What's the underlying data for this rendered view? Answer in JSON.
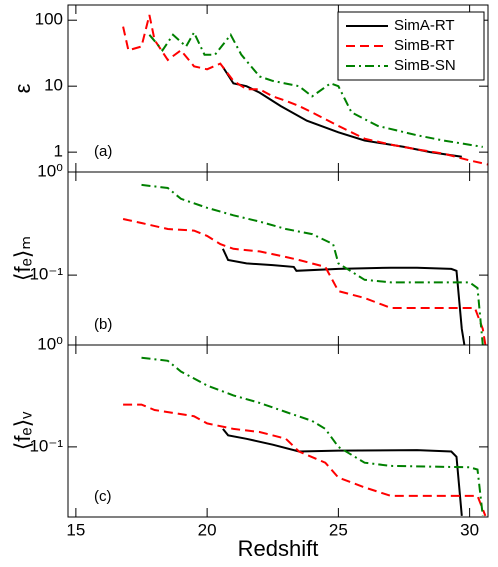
{
  "chart_data": [
    {
      "type": "line",
      "ylabel": "ε",
      "panel_label": "(a)",
      "log_y": true,
      "legend": "upper right",
      "xlim": [
        14.7,
        30.7
      ],
      "xticks": [
        15,
        20,
        25,
        30
      ],
      "ylim": [
        0.5,
        170
      ],
      "yticks": [
        1,
        10,
        100
      ],
      "series": [
        {
          "name": "SimA-RT",
          "color": "#000000",
          "dash": "solid",
          "x": [
            20.6,
            21,
            21.5,
            22,
            22.8,
            23.8,
            25,
            26,
            27.5,
            28.5,
            29.7
          ],
          "values": [
            19.5,
            11,
            10,
            8,
            5,
            3,
            2,
            1.5,
            1.2,
            1.0,
            0.85
          ]
        },
        {
          "name": "SimB-RT",
          "color": "#ff0000",
          "dash": "dashed",
          "x": [
            16.8,
            17,
            17.5,
            17.8,
            18,
            18.5,
            19,
            19.5,
            20,
            20.5,
            21,
            21.5,
            22,
            22.5,
            23,
            23.5,
            24,
            25,
            26,
            27,
            28,
            29,
            30,
            30.7
          ],
          "values": [
            80,
            35,
            40,
            120,
            50,
            25,
            35,
            20,
            18,
            22,
            12,
            9,
            9,
            7,
            6,
            5,
            4,
            2.5,
            1.6,
            1.3,
            1.1,
            0.95,
            0.75,
            0.65
          ]
        },
        {
          "name": "SimB-SN",
          "color": "#008000",
          "dash": "dashdot",
          "x": [
            17.8,
            18.3,
            18.7,
            19.2,
            19.5,
            19.9,
            20.3,
            20.9,
            21.3,
            22,
            22.5,
            23.5,
            24,
            24.7,
            25,
            25.5,
            26.5,
            28,
            29,
            30.5
          ],
          "values": [
            60,
            35,
            60,
            40,
            65,
            30,
            30,
            60,
            30,
            14,
            12,
            10,
            7,
            11,
            10,
            4,
            2.5,
            1.8,
            1.5,
            1.2
          ]
        }
      ]
    },
    {
      "type": "line",
      "ylabel": "⟨fₑ⟩ₘ",
      "panel_label": "(b)",
      "log_y": true,
      "xlim": [
        14.7,
        30.7
      ],
      "xticks": [
        15,
        20,
        25,
        30
      ],
      "ylim": [
        0.021,
        1
      ],
      "yticks": [
        {
          "value": 0.1,
          "label": "10⁻¹"
        },
        {
          "value": 1,
          "label": "10⁰"
        }
      ],
      "series": [
        {
          "color": "#000000",
          "dash": "solid",
          "x": [
            20.6,
            20.8,
            21.5,
            22.5,
            23.3,
            23.4,
            25,
            27,
            28,
            29.3,
            29.5,
            29.7,
            29.8
          ],
          "values": [
            0.18,
            0.14,
            0.13,
            0.125,
            0.12,
            0.11,
            0.115,
            0.118,
            0.118,
            0.115,
            0.11,
            0.03,
            0.021
          ]
        },
        {
          "color": "#ff0000",
          "dash": "dashed",
          "x": [
            16.8,
            17.5,
            18.5,
            19.5,
            20,
            20.5,
            21,
            22,
            23,
            23.5,
            24.5,
            25,
            26,
            27,
            30.2,
            30.5,
            30.6
          ],
          "values": [
            0.35,
            0.32,
            0.28,
            0.27,
            0.24,
            0.2,
            0.18,
            0.17,
            0.15,
            0.14,
            0.12,
            0.07,
            0.06,
            0.048,
            0.048,
            0.03,
            0.021
          ]
        },
        {
          "color": "#008000",
          "dash": "dashdot",
          "x": [
            17.5,
            18.5,
            19,
            20,
            21,
            22,
            23,
            24,
            24.8,
            25,
            26,
            27,
            30,
            30.3,
            30.5
          ],
          "values": [
            0.75,
            0.7,
            0.55,
            0.45,
            0.38,
            0.33,
            0.28,
            0.25,
            0.2,
            0.13,
            0.09,
            0.085,
            0.085,
            0.075,
            0.021
          ]
        }
      ]
    },
    {
      "type": "line",
      "ylabel": "⟨fₑ⟩ᵥ",
      "panel_label": "(c)",
      "log_y": true,
      "xlabel": "Redshift",
      "xlim": [
        14.7,
        30.7
      ],
      "xticks": [
        15,
        20,
        25,
        30
      ],
      "ylim": [
        0.0205,
        1
      ],
      "yticks": [
        {
          "value": 0.1,
          "label": "10⁻¹"
        },
        {
          "value": 1,
          "label": "10⁰"
        }
      ],
      "series": [
        {
          "color": "#000000",
          "dash": "solid",
          "x": [
            20.6,
            20.8,
            21.5,
            22.5,
            23.5,
            25,
            28,
            29.3,
            29.5,
            29.7
          ],
          "values": [
            0.15,
            0.13,
            0.12,
            0.105,
            0.09,
            0.092,
            0.093,
            0.09,
            0.08,
            0.021
          ]
        },
        {
          "color": "#ff0000",
          "dash": "dashed",
          "x": [
            16.8,
            17.5,
            18,
            19.5,
            20,
            21,
            22,
            23,
            23.5,
            24.5,
            25,
            26,
            27,
            30.3,
            30.6
          ],
          "values": [
            0.26,
            0.26,
            0.23,
            0.2,
            0.17,
            0.15,
            0.14,
            0.12,
            0.09,
            0.07,
            0.05,
            0.04,
            0.033,
            0.033,
            0.021
          ]
        },
        {
          "color": "#008000",
          "dash": "dashdot",
          "x": [
            17.5,
            18.5,
            19,
            20,
            21,
            22,
            23,
            24,
            24.5,
            25,
            26,
            27,
            30,
            30.3,
            30.5
          ],
          "values": [
            0.75,
            0.7,
            0.55,
            0.4,
            0.32,
            0.27,
            0.22,
            0.18,
            0.15,
            0.1,
            0.07,
            0.065,
            0.063,
            0.06,
            0.021
          ]
        }
      ]
    }
  ]
}
